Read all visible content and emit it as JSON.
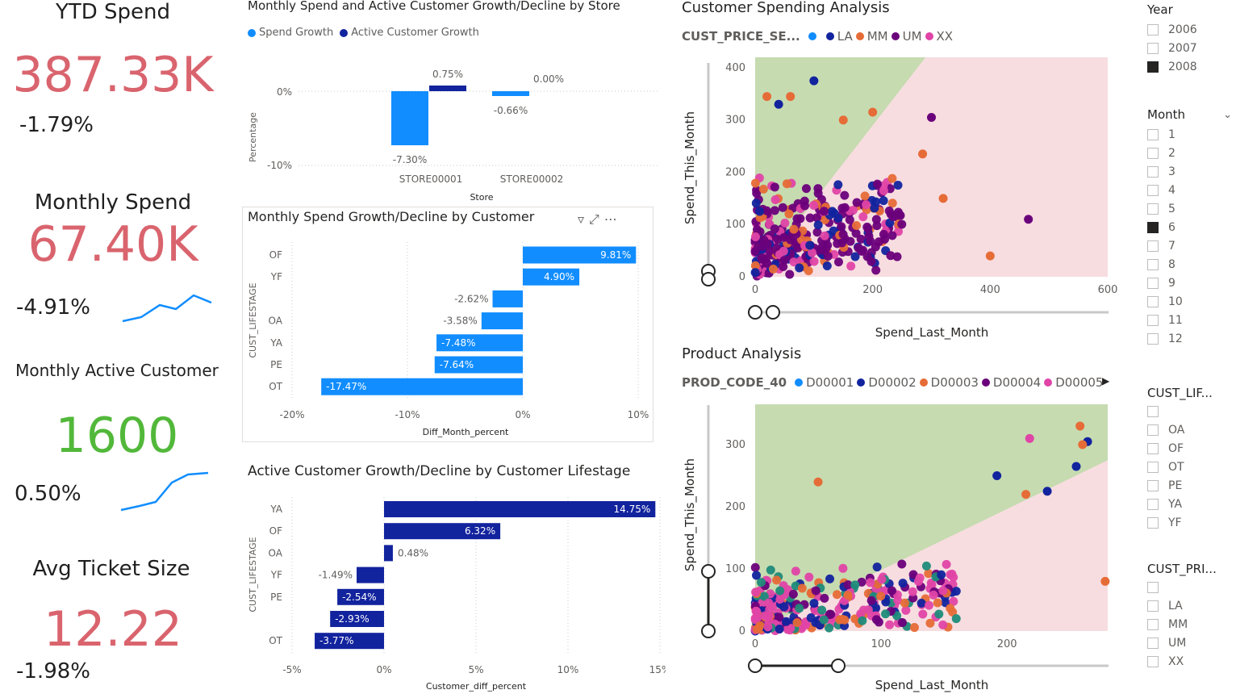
{
  "kpis": {
    "ytd": {
      "title": "YTD Spend",
      "value": "387.33K",
      "delta": "-1.79%"
    },
    "monthly_spend": {
      "title": "Monthly Spend",
      "value": "67.40K",
      "delta": "-4.91%"
    },
    "active": {
      "title": "Monthly Active Customer",
      "value": "1600",
      "delta": "0.50%"
    },
    "ticket": {
      "title": "Avg Ticket Size",
      "value": "12.22",
      "delta": "-1.98%"
    }
  },
  "colors": {
    "red": "#d9646e",
    "green": "#52b83a",
    "blue": "#118dff",
    "navy": "#12239e",
    "orange": "#e66c37",
    "purple": "#6b007b",
    "pink": "#e044a7",
    "greenZone": "#c6dbb0",
    "pinkZone": "#f7dde0"
  },
  "store_chart": {
    "title": "Monthly Spend and Active Customer Growth/Decline by Store",
    "legend": [
      "Spend Growth",
      "Active Customer Growth"
    ],
    "ylabel": "Percentage",
    "xlabel": "Store",
    "yticks": [
      "0%",
      "-10%"
    ],
    "stores": [
      "STORE00001",
      "STORE00002"
    ],
    "labels": {
      "s1_spend": "-7.30%",
      "s1_active": "0.75%",
      "s2_spend": "-0.66%",
      "s2_active": "0.00%"
    }
  },
  "spend_customer": {
    "title": "Monthly Spend Growth/Decline by Customer",
    "ylabel": "CUST_LIFESTAGE",
    "xlabel": "Diff_Month_percent",
    "xticks": [
      "-20%",
      "-10%",
      "0%",
      "10%"
    ]
  },
  "active_lifestage": {
    "title": "Active Customer Growth/Decline by Customer Lifestage",
    "ylabel": "CUST_LIFESTAGE",
    "xlabel": "Customer_diff_percent",
    "xticks": [
      "-5%",
      "0%",
      "5%",
      "10%",
      "15%"
    ]
  },
  "chart_data": [
    {
      "type": "bar",
      "title": "Monthly Spend and Active Customer Growth/Decline by Store",
      "xlabel": "Store",
      "ylabel": "Percentage",
      "categories": [
        "STORE00001",
        "STORE00002"
      ],
      "series": [
        {
          "name": "Spend Growth",
          "values": [
            -7.3,
            -0.66
          ]
        },
        {
          "name": "Active Customer Growth",
          "values": [
            0.75,
            0.0
          ]
        }
      ],
      "ylim": [
        -10,
        2
      ]
    },
    {
      "type": "bar",
      "title": "Monthly Spend Growth/Decline by Customer",
      "xlabel": "Diff_Month_percent",
      "ylabel": "CUST_LIFESTAGE",
      "categories": [
        "OF",
        "YF",
        "",
        "OA",
        "YA",
        "PE",
        "OT"
      ],
      "values": [
        9.81,
        4.9,
        -2.62,
        -3.58,
        -7.48,
        -7.64,
        -17.47
      ],
      "labels": [
        "9.81%",
        "4.90%",
        "-2.62%",
        "-3.58%",
        "-7.48%",
        "-7.64%",
        "-17.47%"
      ],
      "xlim": [
        -20,
        10
      ]
    },
    {
      "type": "bar",
      "title": "Active Customer Growth/Decline by Customer Lifestage",
      "xlabel": "Customer_diff_percent",
      "ylabel": "CUST_LIFESTAGE",
      "categories": [
        "YA",
        "OF",
        "OA",
        "YF",
        "PE",
        "",
        "OT"
      ],
      "values": [
        14.75,
        6.32,
        0.48,
        -1.49,
        -2.54,
        -2.93,
        -3.77
      ],
      "labels": [
        "14.75%",
        "6.32%",
        "0.48%",
        "-1.49%",
        "-2.54%",
        "-2.93%",
        "-3.77%"
      ],
      "xlim": [
        -5,
        15
      ]
    },
    {
      "type": "scatter",
      "title": "Customer Spending Analysis",
      "xlabel": "Spend_Last_Month",
      "ylabel": "Spend_This_Month",
      "xlim": [
        0,
        600
      ],
      "ylim": [
        0,
        420
      ],
      "xticks": [
        0,
        200,
        400,
        600
      ],
      "yticks": [
        0,
        100,
        200,
        300,
        400
      ],
      "legend_title": "CUST_PRICE_SE...",
      "legend": [
        "",
        "LA",
        "MM",
        "UM",
        "XX"
      ],
      "outliers": [
        {
          "x": 100,
          "y": 375,
          "c": "LA"
        },
        {
          "x": 20,
          "y": 345,
          "c": "MM"
        },
        {
          "x": 60,
          "y": 345,
          "c": "MM"
        },
        {
          "x": 40,
          "y": 330,
          "c": "LA"
        },
        {
          "x": 200,
          "y": 315,
          "c": "MM"
        },
        {
          "x": 300,
          "y": 305,
          "c": "UM"
        },
        {
          "x": 150,
          "y": 300,
          "c": "MM"
        },
        {
          "x": 285,
          "y": 235,
          "c": "MM"
        },
        {
          "x": 320,
          "y": 150,
          "c": "MM"
        },
        {
          "x": 465,
          "y": 110,
          "c": "UM"
        },
        {
          "x": 400,
          "y": 40,
          "c": "MM"
        }
      ]
    },
    {
      "type": "scatter",
      "title": "Product Analysis",
      "xlabel": "Spend_Last_Month",
      "ylabel": "Spend_This_Month",
      "xlim": [
        0,
        280
      ],
      "ylim": [
        0,
        365
      ],
      "xticks": [
        0,
        100,
        200
      ],
      "yticks": [
        0,
        100,
        200,
        300
      ],
      "legend_title": "PROD_CODE_40",
      "legend": [
        "D00001",
        "D00002",
        "D00003",
        "D00004",
        "D00005"
      ],
      "outliers": [
        {
          "x": 258,
          "y": 330,
          "c": "D00003"
        },
        {
          "x": 264,
          "y": 305,
          "c": "D00002"
        },
        {
          "x": 260,
          "y": 300,
          "c": "D00003"
        },
        {
          "x": 218,
          "y": 310,
          "c": "D00005"
        },
        {
          "x": 50,
          "y": 240,
          "c": "D00003"
        },
        {
          "x": 255,
          "y": 265,
          "c": "D00002"
        },
        {
          "x": 192,
          "y": 250,
          "c": "D00002"
        },
        {
          "x": 232,
          "y": 225,
          "c": "D00002"
        },
        {
          "x": 215,
          "y": 220,
          "c": "D00003"
        },
        {
          "x": 278,
          "y": 80,
          "c": "D00003"
        }
      ]
    }
  ],
  "scatter1": {
    "title": "Customer Spending Analysis",
    "legend_title": "CUST_PRICE_SE...",
    "legend": [
      "",
      "LA",
      "MM",
      "UM",
      "XX"
    ],
    "xlabel": "Spend_Last_Month",
    "ylabel": "Spend_This_Month",
    "xticks": [
      "0",
      "200",
      "400",
      "600"
    ],
    "yticks": [
      "0",
      "100",
      "200",
      "300",
      "400"
    ]
  },
  "scatter2": {
    "title": "Product Analysis",
    "legend_title": "PROD_CODE_40",
    "legend": [
      "D00001",
      "D00002",
      "D00003",
      "D00004",
      "D00005"
    ],
    "xlabel": "Spend_Last_Month",
    "ylabel": "Spend_This_Month",
    "xticks": [
      "0",
      "100",
      "200"
    ],
    "yticks": [
      "0",
      "100",
      "200",
      "300"
    ]
  },
  "slicers": {
    "year": {
      "title": "Year",
      "items": [
        "2006",
        "2007",
        "2008"
      ],
      "checked": [
        false,
        false,
        true
      ]
    },
    "month": {
      "title": "Month",
      "items": [
        "1",
        "2",
        "3",
        "4",
        "5",
        "6",
        "7",
        "8",
        "9",
        "10",
        "11",
        "12"
      ],
      "checked": [
        false,
        false,
        false,
        false,
        false,
        true,
        false,
        false,
        false,
        false,
        false,
        false
      ]
    },
    "lifestage": {
      "title": "CUST_LIF...",
      "items": [
        "",
        "OA",
        "OF",
        "OT",
        "PE",
        "YA",
        "YF"
      ]
    },
    "price": {
      "title": "CUST_PRI...",
      "items": [
        "",
        "LA",
        "MM",
        "UM",
        "XX"
      ]
    }
  }
}
